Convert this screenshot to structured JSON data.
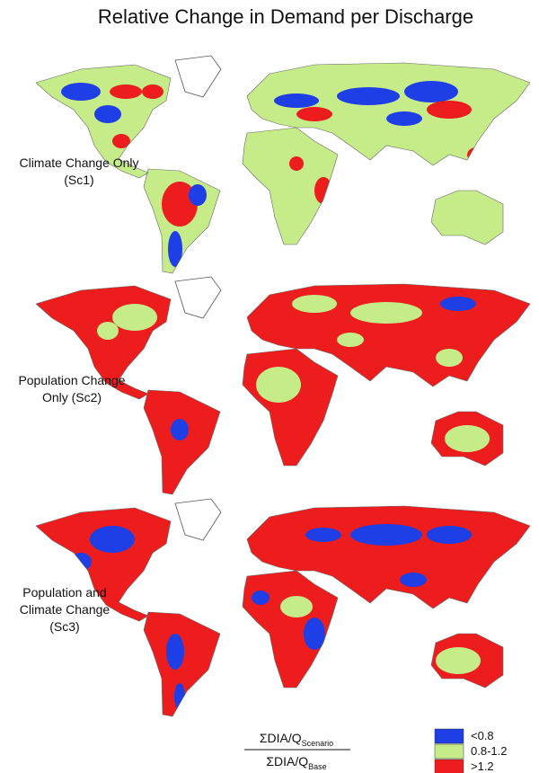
{
  "title": "Relative Change in Demand per Discharge",
  "panels": [
    {
      "label_lines": [
        "Climate Change Only",
        "(Sc1)"
      ]
    },
    {
      "label_lines": [
        "Population Change",
        "Only (Sc2)"
      ]
    },
    {
      "label_lines": [
        "Population and",
        "Climate Change",
        "(Sc3)"
      ]
    }
  ],
  "legend": {
    "formula": {
      "numerator": "ΣDIA/Q",
      "numerator_sub": "Scenario",
      "denominator": "ΣDIA/Q",
      "denominator_sub": "Base"
    },
    "items": [
      {
        "label": "<0.8",
        "color": "#1f3fe6"
      },
      {
        "label": "0.8-1.2",
        "color": "#c6ec8a"
      },
      {
        "label": ">1.2",
        "color": "#ee1d1d"
      }
    ]
  }
}
